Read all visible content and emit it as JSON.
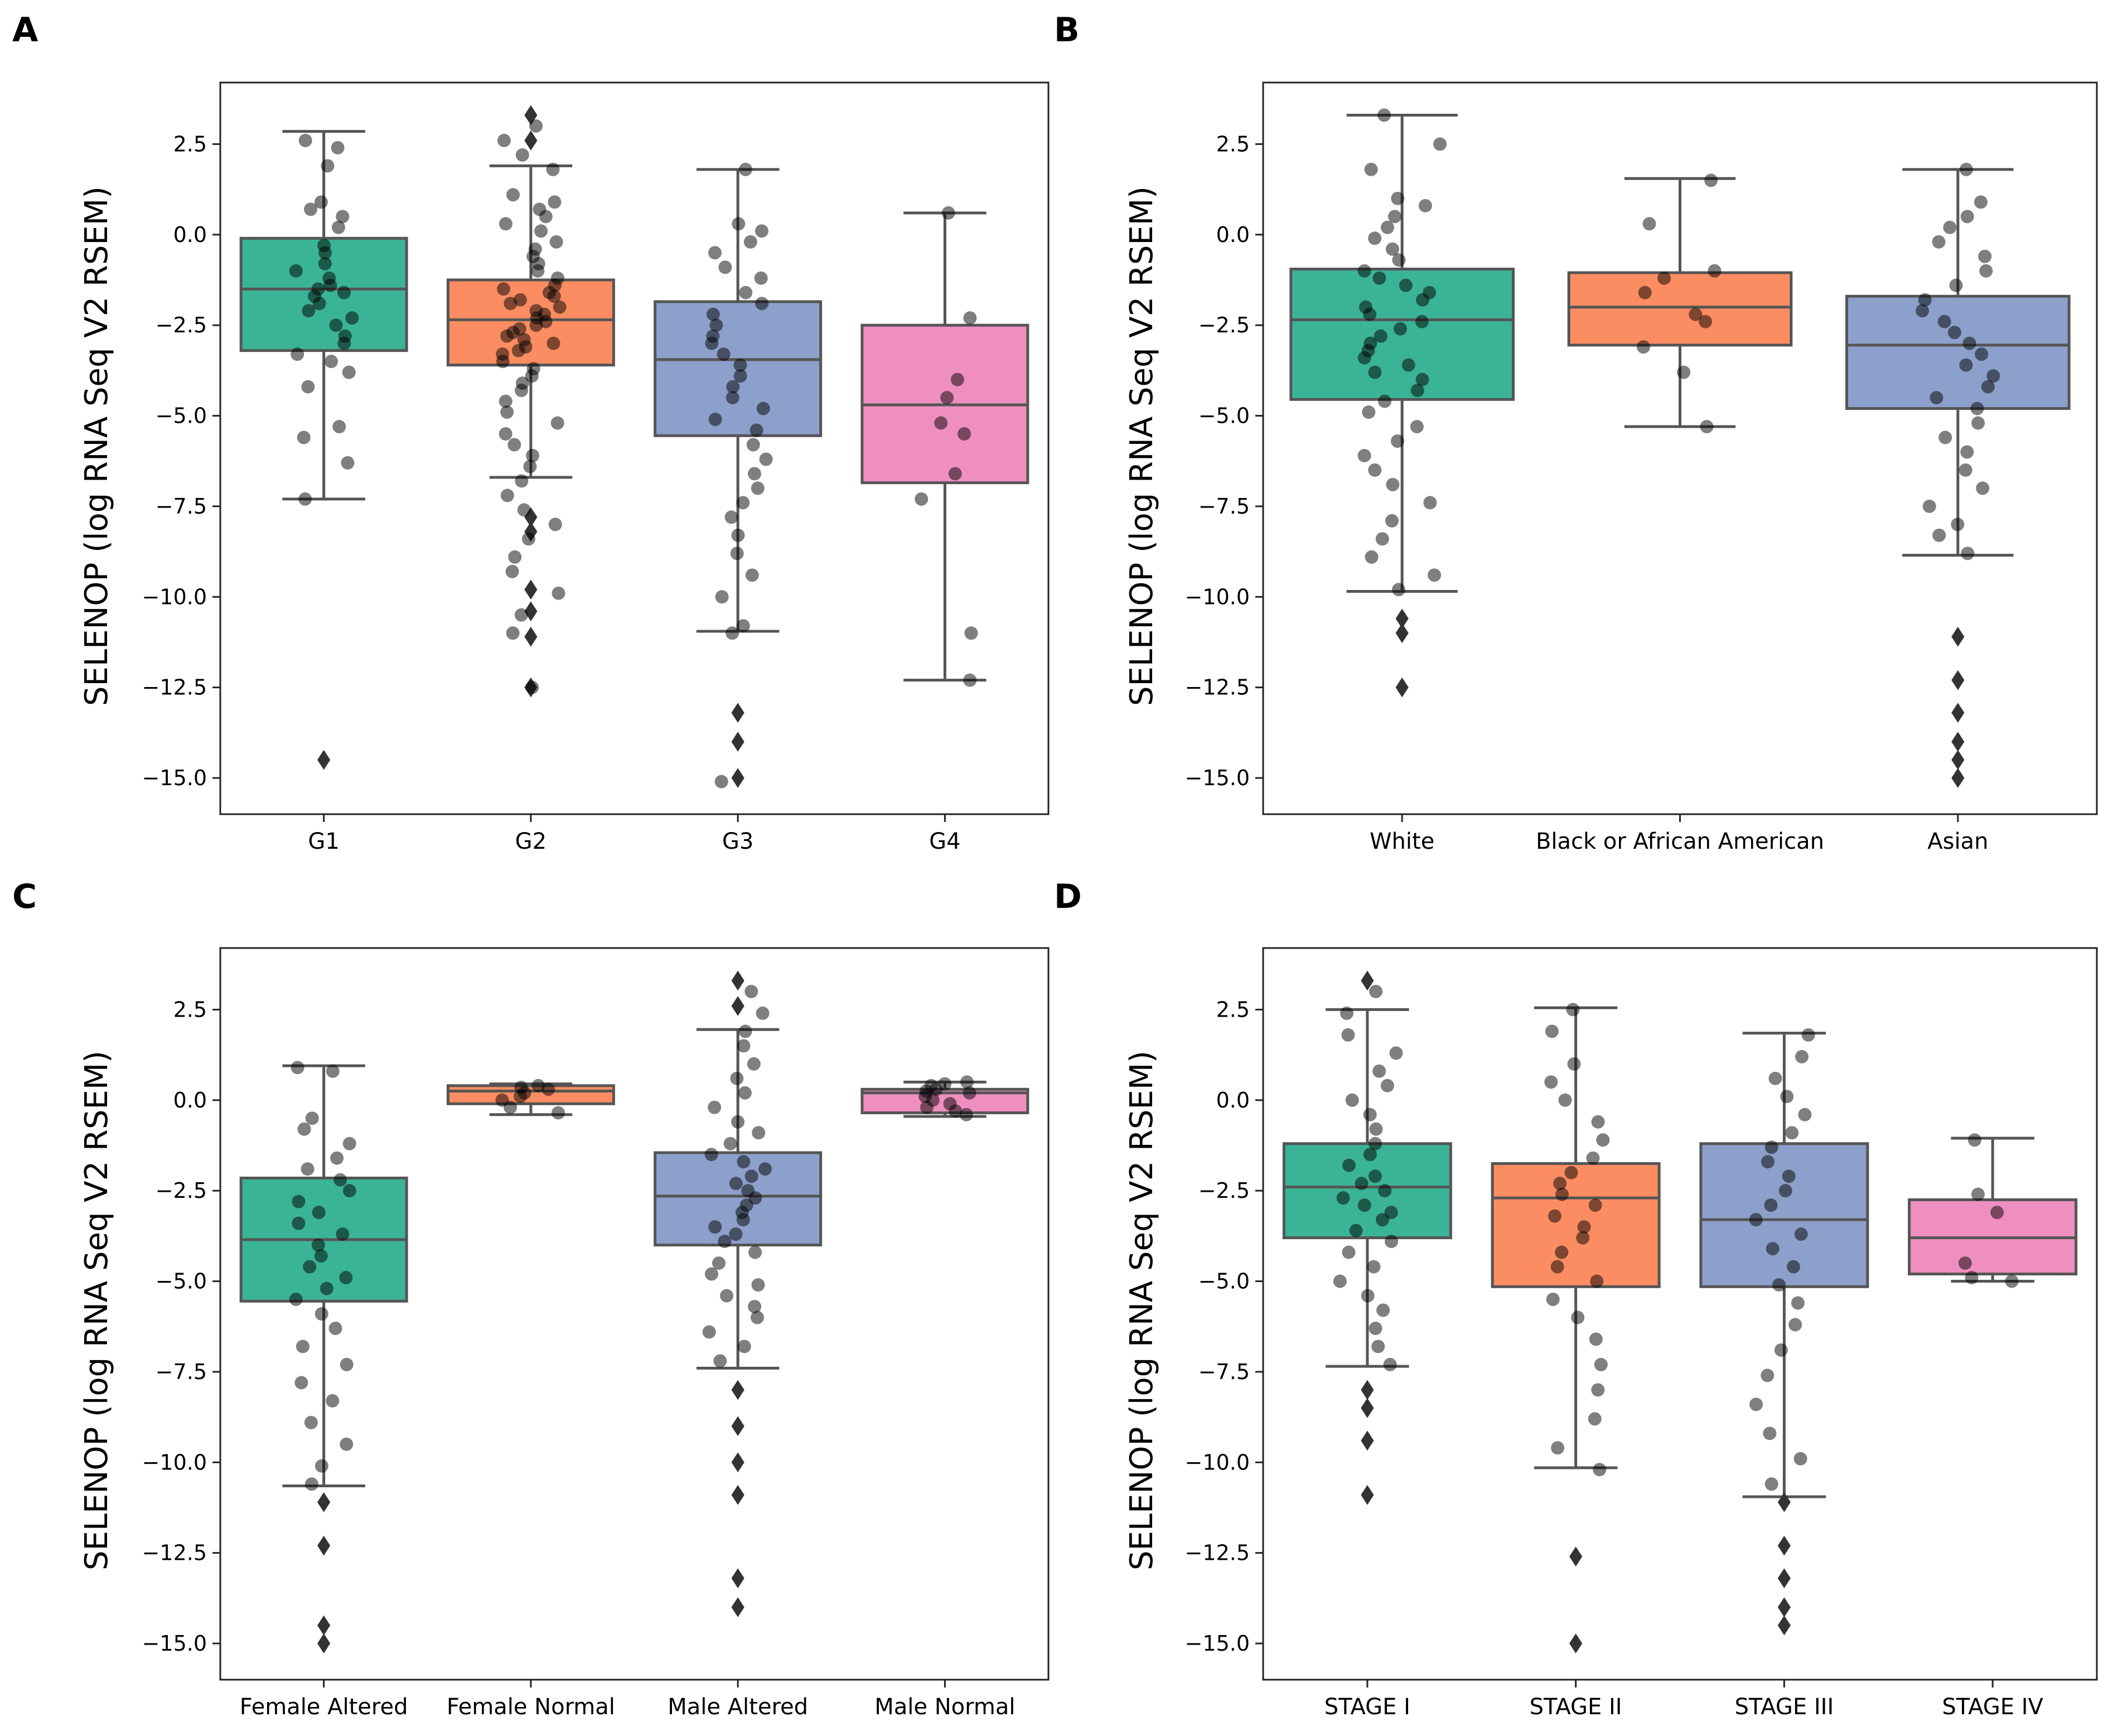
{
  "figure": {
    "colors": {
      "box_palette": [
        "#3bb397",
        "#fc8d62",
        "#8da0cb",
        "#ef8fc0"
      ],
      "box_edge": "#555555",
      "point": "#000000",
      "frame": "#222222"
    },
    "marker_icon": "diamond-outlier-marker"
  },
  "chart_data": [
    {
      "panel": "A",
      "type": "box",
      "ylabel": "SELENOP (log RNA Seq V2 RSEM)",
      "ylim": [
        -16.0,
        4.2
      ],
      "yticks": [
        2.5,
        0.0,
        -2.5,
        -5.0,
        -7.5,
        -10.0,
        -12.5,
        -15.0
      ],
      "ytick_labels": [
        "2.5",
        "0.0",
        "−2.5",
        "−5.0",
        "−7.5",
        "−10.0",
        "−12.5",
        "−15.0"
      ],
      "categories": [
        "G1",
        "G2",
        "G3",
        "G4"
      ],
      "boxes": [
        {
          "q1": -3.2,
          "median": -1.5,
          "q3": -0.1,
          "whisker_low": -7.3,
          "whisker_high": 2.85,
          "outliers": [
            -14.5
          ]
        },
        {
          "q1": -3.6,
          "median": -2.35,
          "q3": -1.25,
          "whisker_low": -6.7,
          "whisker_high": 1.9,
          "outliers": [
            3.3,
            2.6,
            -7.8,
            -8.2,
            -9.8,
            -10.4,
            -11.1,
            -12.5
          ]
        },
        {
          "q1": -5.55,
          "median": -3.45,
          "q3": -1.85,
          "whisker_low": -10.95,
          "whisker_high": 1.8,
          "outliers": [
            -13.2,
            -14.0,
            -15.0
          ]
        },
        {
          "q1": -6.85,
          "median": -4.7,
          "q3": -2.5,
          "whisker_low": -12.3,
          "whisker_high": 0.6,
          "outliers": []
        }
      ],
      "points": [
        [
          2.6,
          2.4,
          1.9,
          0.9,
          0.7,
          0.5,
          0.2,
          -0.3,
          -0.5,
          -0.8,
          -1.0,
          -1.2,
          -1.4,
          -1.5,
          -1.6,
          -1.7,
          -1.9,
          -2.1,
          -2.3,
          -2.5,
          -2.8,
          -3.0,
          -3.3,
          -3.5,
          -3.8,
          -4.2,
          -5.3,
          -5.6,
          -6.3,
          -7.3
        ],
        [
          3.0,
          2.6,
          2.2,
          1.8,
          1.1,
          0.9,
          0.7,
          0.5,
          0.3,
          0.1,
          -0.2,
          -0.4,
          -0.6,
          -0.8,
          -1.0,
          -1.2,
          -1.4,
          -1.5,
          -1.6,
          -1.7,
          -1.8,
          -1.9,
          -2.0,
          -2.1,
          -2.2,
          -2.3,
          -2.4,
          -2.5,
          -2.6,
          -2.7,
          -2.8,
          -2.9,
          -3.0,
          -3.1,
          -3.2,
          -3.3,
          -3.5,
          -3.7,
          -3.9,
          -4.1,
          -4.3,
          -4.6,
          -4.9,
          -5.2,
          -5.5,
          -5.8,
          -6.1,
          -6.4,
          -6.8,
          -7.2,
          -7.6,
          -8.0,
          -8.4,
          -8.9,
          -9.3,
          -9.9,
          -10.5,
          -11.0,
          -12.5
        ],
        [
          1.8,
          0.3,
          0.1,
          -0.2,
          -0.5,
          -0.9,
          -1.2,
          -1.6,
          -1.9,
          -2.2,
          -2.5,
          -2.8,
          -3.0,
          -3.3,
          -3.6,
          -3.9,
          -4.2,
          -4.5,
          -4.8,
          -5.1,
          -5.4,
          -5.8,
          -6.2,
          -6.6,
          -7.0,
          -7.4,
          -7.8,
          -8.3,
          -8.8,
          -9.4,
          -10.0,
          -10.8,
          -11.0,
          -15.1
        ],
        [
          0.6,
          -2.3,
          -4.0,
          -4.5,
          -5.2,
          -5.5,
          -6.6,
          -7.3,
          -11.0,
          -12.3
        ]
      ]
    },
    {
      "panel": "B",
      "type": "box",
      "ylabel": "SELENOP (log RNA Seq V2 RSEM)",
      "ylim": [
        -16.0,
        4.2
      ],
      "yticks": [
        2.5,
        0.0,
        -2.5,
        -5.0,
        -7.5,
        -10.0,
        -12.5,
        -15.0
      ],
      "ytick_labels": [
        "2.5",
        "0.0",
        "−2.5",
        "−5.0",
        "−7.5",
        "−10.0",
        "−12.5",
        "−15.0"
      ],
      "categories": [
        "White",
        "Black or African American",
        "Asian"
      ],
      "boxes": [
        {
          "q1": -4.55,
          "median": -2.35,
          "q3": -0.95,
          "whisker_low": -9.85,
          "whisker_high": 3.3,
          "outliers": [
            -10.6,
            -11.0,
            -12.5
          ]
        },
        {
          "q1": -3.05,
          "median": -2.0,
          "q3": -1.05,
          "whisker_low": -5.3,
          "whisker_high": 1.55,
          "outliers": []
        },
        {
          "q1": -4.8,
          "median": -3.05,
          "q3": -1.7,
          "whisker_low": -8.85,
          "whisker_high": 1.8,
          "outliers": [
            -11.1,
            -12.3,
            -13.2,
            -14.0,
            -14.5,
            -15.0
          ]
        }
      ],
      "points": [
        [
          3.3,
          2.5,
          1.8,
          1.0,
          0.8,
          0.5,
          0.2,
          -0.1,
          -0.4,
          -0.7,
          -1.0,
          -1.2,
          -1.4,
          -1.6,
          -1.8,
          -2.0,
          -2.2,
          -2.4,
          -2.6,
          -2.8,
          -3.0,
          -3.2,
          -3.4,
          -3.6,
          -3.8,
          -4.0,
          -4.3,
          -4.6,
          -4.9,
          -5.3,
          -5.7,
          -6.1,
          -6.5,
          -6.9,
          -7.4,
          -7.9,
          -8.4,
          -8.9,
          -9.4,
          -9.8
        ],
        [
          1.5,
          0.3,
          -1.0,
          -1.2,
          -1.6,
          -2.2,
          -2.4,
          -3.1,
          -3.8,
          -5.3
        ],
        [
          1.8,
          0.9,
          0.5,
          0.2,
          -0.2,
          -0.6,
          -1.0,
          -1.4,
          -1.8,
          -2.1,
          -2.4,
          -2.7,
          -3.0,
          -3.3,
          -3.6,
          -3.9,
          -4.2,
          -4.5,
          -4.8,
          -5.2,
          -5.6,
          -6.0,
          -6.5,
          -7.0,
          -7.5,
          -8.0,
          -8.3,
          -8.8
        ]
      ]
    },
    {
      "panel": "C",
      "type": "box",
      "ylabel": "SELENOP (log RNA Seq V2 RSEM)",
      "ylim": [
        -16.0,
        4.2
      ],
      "yticks": [
        2.5,
        0.0,
        -2.5,
        -5.0,
        -7.5,
        -10.0,
        -12.5,
        -15.0
      ],
      "ytick_labels": [
        "2.5",
        "0.0",
        "−2.5",
        "−5.0",
        "−7.5",
        "−10.0",
        "−12.5",
        "−15.0"
      ],
      "categories": [
        "Female Altered",
        "Female Normal",
        "Male Altered",
        "Male Normal"
      ],
      "boxes": [
        {
          "q1": -5.55,
          "median": -3.85,
          "q3": -2.15,
          "whisker_low": -10.65,
          "whisker_high": 0.95,
          "outliers": [
            -11.1,
            -12.3,
            -14.5,
            -15.0
          ]
        },
        {
          "q1": -0.1,
          "median": 0.25,
          "q3": 0.4,
          "whisker_low": -0.4,
          "whisker_high": 0.45,
          "outliers": []
        },
        {
          "q1": -4.0,
          "median": -2.65,
          "q3": -1.45,
          "whisker_low": -7.4,
          "whisker_high": 1.95,
          "outliers": [
            3.3,
            2.6,
            -8.0,
            -9.0,
            -10.0,
            -10.9,
            -13.2,
            -14.0
          ]
        },
        {
          "q1": -0.35,
          "median": 0.2,
          "q3": 0.3,
          "whisker_low": -0.45,
          "whisker_high": 0.5,
          "outliers": []
        }
      ],
      "points": [
        [
          0.9,
          0.8,
          -0.5,
          -0.8,
          -1.2,
          -1.6,
          -1.9,
          -2.2,
          -2.5,
          -2.8,
          -3.1,
          -3.4,
          -3.7,
          -4.0,
          -4.3,
          -4.6,
          -4.9,
          -5.2,
          -5.5,
          -5.9,
          -6.3,
          -6.8,
          -7.3,
          -7.8,
          -8.3,
          -8.9,
          -9.5,
          -10.1,
          -10.6
        ],
        [
          0.4,
          0.35,
          0.3,
          0.2,
          0.1,
          0.0,
          -0.2,
          -0.35
        ],
        [
          3.0,
          2.4,
          1.9,
          1.5,
          1.0,
          0.6,
          0.2,
          -0.2,
          -0.6,
          -0.9,
          -1.2,
          -1.5,
          -1.7,
          -1.9,
          -2.1,
          -2.3,
          -2.5,
          -2.7,
          -2.9,
          -3.1,
          -3.3,
          -3.5,
          -3.7,
          -3.9,
          -4.2,
          -4.5,
          -4.8,
          -5.1,
          -5.4,
          -5.7,
          -6.0,
          -6.4,
          -6.8,
          -7.2
        ],
        [
          0.5,
          0.45,
          0.4,
          0.3,
          0.25,
          0.2,
          0.1,
          0.0,
          -0.1,
          -0.2,
          -0.3,
          -0.4
        ]
      ]
    },
    {
      "panel": "D",
      "type": "box",
      "ylabel": "SELENOP (log RNA Seq V2 RSEM)",
      "ylim": [
        -16.0,
        4.2
      ],
      "yticks": [
        2.5,
        0.0,
        -2.5,
        -5.0,
        -7.5,
        -10.0,
        -12.5,
        -15.0
      ],
      "ytick_labels": [
        "2.5",
        "0.0",
        "−2.5",
        "−5.0",
        "−7.5",
        "−10.0",
        "−12.5",
        "−15.0"
      ],
      "categories": [
        "STAGE I",
        "STAGE II",
        "STAGE III",
        "STAGE IV"
      ],
      "boxes": [
        {
          "q1": -3.8,
          "median": -2.4,
          "q3": -1.2,
          "whisker_low": -7.35,
          "whisker_high": 2.5,
          "outliers": [
            3.3,
            -8.0,
            -8.5,
            -9.4,
            -10.9
          ]
        },
        {
          "q1": -5.15,
          "median": -2.7,
          "q3": -1.75,
          "whisker_low": -10.15,
          "whisker_high": 2.55,
          "outliers": [
            -12.6,
            -15.0
          ]
        },
        {
          "q1": -5.15,
          "median": -3.3,
          "q3": -1.2,
          "whisker_low": -10.95,
          "whisker_high": 1.85,
          "outliers": [
            -11.1,
            -12.3,
            -13.2,
            -14.0,
            -14.5
          ]
        },
        {
          "q1": -4.8,
          "median": -3.8,
          "q3": -2.75,
          "whisker_low": -5.0,
          "whisker_high": -1.05,
          "outliers": []
        }
      ],
      "points": [
        [
          3.0,
          2.4,
          1.8,
          1.3,
          0.8,
          0.4,
          0.0,
          -0.4,
          -0.8,
          -1.2,
          -1.5,
          -1.8,
          -2.1,
          -2.3,
          -2.5,
          -2.7,
          -2.9,
          -3.1,
          -3.3,
          -3.6,
          -3.9,
          -4.2,
          -4.6,
          -5.0,
          -5.4,
          -5.8,
          -6.3,
          -6.8,
          -7.3
        ],
        [
          2.5,
          1.9,
          1.0,
          0.5,
          0.0,
          -0.6,
          -1.1,
          -1.6,
          -2.0,
          -2.3,
          -2.6,
          -2.9,
          -3.2,
          -3.5,
          -3.8,
          -4.2,
          -4.6,
          -5.0,
          -5.5,
          -6.0,
          -6.6,
          -7.3,
          -8.0,
          -8.8,
          -9.6,
          -10.2
        ],
        [
          1.8,
          1.2,
          0.6,
          0.1,
          -0.4,
          -0.9,
          -1.3,
          -1.7,
          -2.1,
          -2.5,
          -2.9,
          -3.3,
          -3.7,
          -4.1,
          -4.6,
          -5.1,
          -5.6,
          -6.2,
          -6.9,
          -7.6,
          -8.4,
          -9.2,
          -9.9,
          -10.6
        ],
        [
          -1.1,
          -2.6,
          -3.1,
          -4.5,
          -4.9,
          -5.0
        ]
      ]
    }
  ]
}
